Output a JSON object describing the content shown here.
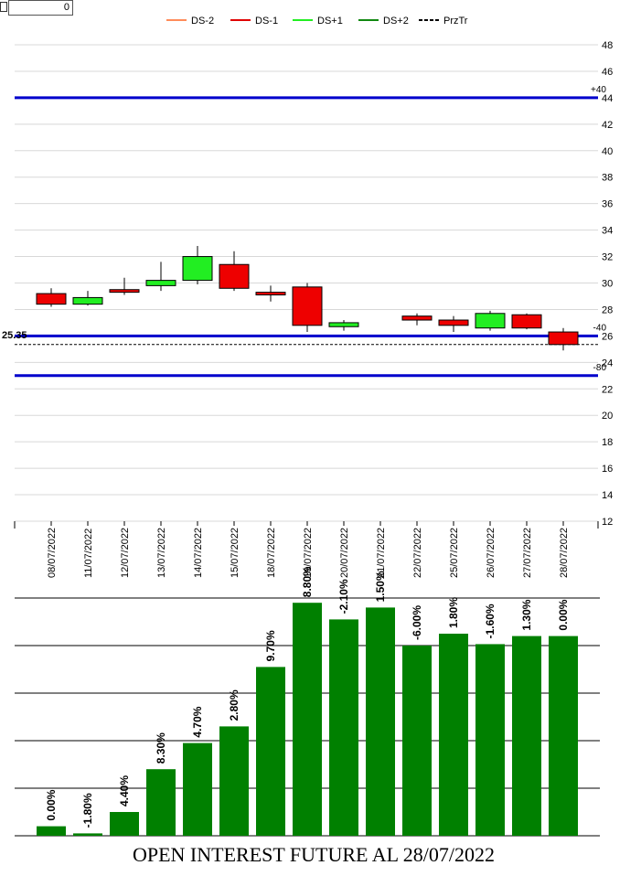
{
  "controls": {
    "counter_value": "0"
  },
  "legend": [
    {
      "label": "DS-2",
      "color": "#ff8c5a",
      "style": "solid"
    },
    {
      "label": "DS-1",
      "color": "#e00000",
      "style": "solid"
    },
    {
      "label": "DS+1",
      "color": "#22ee22",
      "style": "solid"
    },
    {
      "label": "DS+2",
      "color": "#118811",
      "style": "solid"
    },
    {
      "label": "PrzTr",
      "color": "#000000",
      "style": "dashed"
    }
  ],
  "chart_data": [
    {
      "type": "candlestick",
      "x": [
        "08/07/2022",
        "11/07/2022",
        "12/07/2022",
        "13/07/2022",
        "14/07/2022",
        "15/07/2022",
        "18/07/2022",
        "19/07/2022",
        "20/07/2022",
        "21/07/2022",
        "22/07/2022",
        "25/07/2022",
        "26/07/2022",
        "27/07/2022",
        "28/07/2022"
      ],
      "candles": [
        {
          "open": 29.2,
          "high": 29.6,
          "low": 28.2,
          "close": 28.4
        },
        {
          "open": 28.4,
          "high": 29.4,
          "low": 28.3,
          "close": 28.9
        },
        {
          "open": 29.5,
          "high": 30.4,
          "low": 29.1,
          "close": 29.3
        },
        {
          "open": 29.8,
          "high": 31.6,
          "low": 29.4,
          "close": 30.2
        },
        {
          "open": 30.2,
          "high": 32.8,
          "low": 29.9,
          "close": 32.0
        },
        {
          "open": 31.4,
          "high": 32.4,
          "low": 29.4,
          "close": 29.6
        },
        {
          "open": 29.3,
          "high": 29.8,
          "low": 28.6,
          "close": 29.1
        },
        {
          "open": 29.7,
          "high": 30.0,
          "low": 26.3,
          "close": 26.8
        },
        {
          "open": 26.7,
          "high": 27.2,
          "low": 26.4,
          "close": 27.0
        },
        null,
        {
          "open": 27.5,
          "high": 27.7,
          "low": 26.8,
          "close": 27.2
        },
        {
          "open": 27.2,
          "high": 27.5,
          "low": 26.3,
          "close": 26.8
        },
        {
          "open": 26.6,
          "high": 27.9,
          "low": 26.4,
          "close": 27.7
        },
        {
          "open": 27.6,
          "high": 27.7,
          "low": 26.5,
          "close": 26.6
        },
        {
          "open": 26.3,
          "high": 26.6,
          "low": 24.9,
          "close": 25.35
        }
      ],
      "ylim": [
        12,
        48
      ],
      "y_ticks": [
        12,
        14,
        16,
        18,
        20,
        22,
        24,
        26,
        28,
        30,
        32,
        34,
        36,
        38,
        40,
        42,
        44,
        46,
        48
      ],
      "y_axis_side": "right",
      "grid": true,
      "legend_position": "top",
      "hlines": [
        {
          "y": 44,
          "label": "+40",
          "color": "#0000cc"
        },
        {
          "y": 26,
          "label": "-40",
          "color": "#0000cc"
        },
        {
          "y": 23,
          "label": "-80",
          "color": "#0000cc"
        }
      ],
      "price_line": {
        "y": 25.35,
        "label": "25.35"
      }
    },
    {
      "type": "bar",
      "categories": [
        "08/07/2022",
        "11/07/2022",
        "12/07/2022",
        "13/07/2022",
        "14/07/2022",
        "15/07/2022",
        "18/07/2022",
        "19/07/2022",
        "20/07/2022",
        "21/07/2022",
        "22/07/2022",
        "25/07/2022",
        "26/07/2022",
        "27/07/2022",
        "28/07/2022"
      ],
      "values": [
        2.0,
        0.5,
        5.0,
        14.0,
        19.5,
        23.0,
        35.5,
        49.0,
        45.5,
        48.0,
        40.0,
        42.5,
        40.3,
        42.0,
        42.0
      ],
      "labels": [
        "0.00%",
        "-1.80%",
        "4.40%",
        "8.30%",
        "4.70%",
        "2.80%",
        "9.70%",
        "8.80%",
        "-2.10%",
        "1.50%",
        "-6.00%",
        "1.80%",
        "-1.60%",
        "1.30%",
        "0.00%"
      ],
      "ylim": [
        0,
        50
      ],
      "grid": true,
      "bar_color": "#008000",
      "title": "OPEN INTEREST FUTURE AL 28/07/2022"
    }
  ]
}
